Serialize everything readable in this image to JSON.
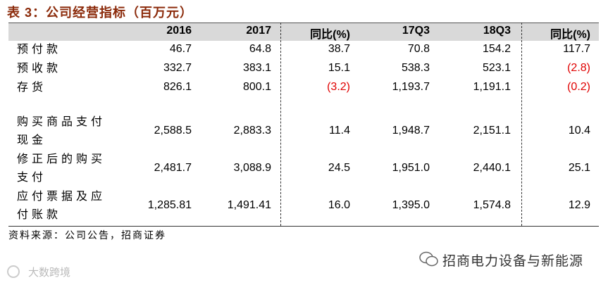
{
  "header": {
    "title": "表 3：公司经营指标（百万元）"
  },
  "table": {
    "columns": [
      "2016",
      "2017",
      "同比(%)",
      "17Q3",
      "18Q3",
      "同比(%)"
    ],
    "rows": [
      [
        "预付款",
        "46.7",
        "64.8",
        "38.7",
        "70.8",
        "154.2",
        "117.7"
      ],
      [
        "预收款",
        "332.7",
        "383.1",
        "15.1",
        "538.3",
        "523.1",
        "(2.8)"
      ],
      [
        "存货",
        "826.1",
        "800.1",
        "(3.2)",
        "1,193.7",
        "1,191.1",
        "(0.2)"
      ],
      [
        "购买商品支付现金",
        "2,588.5",
        "2,883.3",
        "11.4",
        "1,948.7",
        "2,151.1",
        "10.4"
      ],
      [
        "修正后的购买支付",
        "2,481.7",
        "3,088.9",
        "24.5",
        "1,951.0",
        "2,440.1",
        "25.1"
      ],
      [
        "应付票据及应付账款",
        "1,285.81",
        "1,491.41",
        "16.0",
        "1,395.0",
        "1,574.8",
        "12.9"
      ]
    ]
  },
  "source": "资料来源：公司公告，招商证券",
  "watermark": "招商电力设备与新能源",
  "corner_watermark": "大数跨境"
}
